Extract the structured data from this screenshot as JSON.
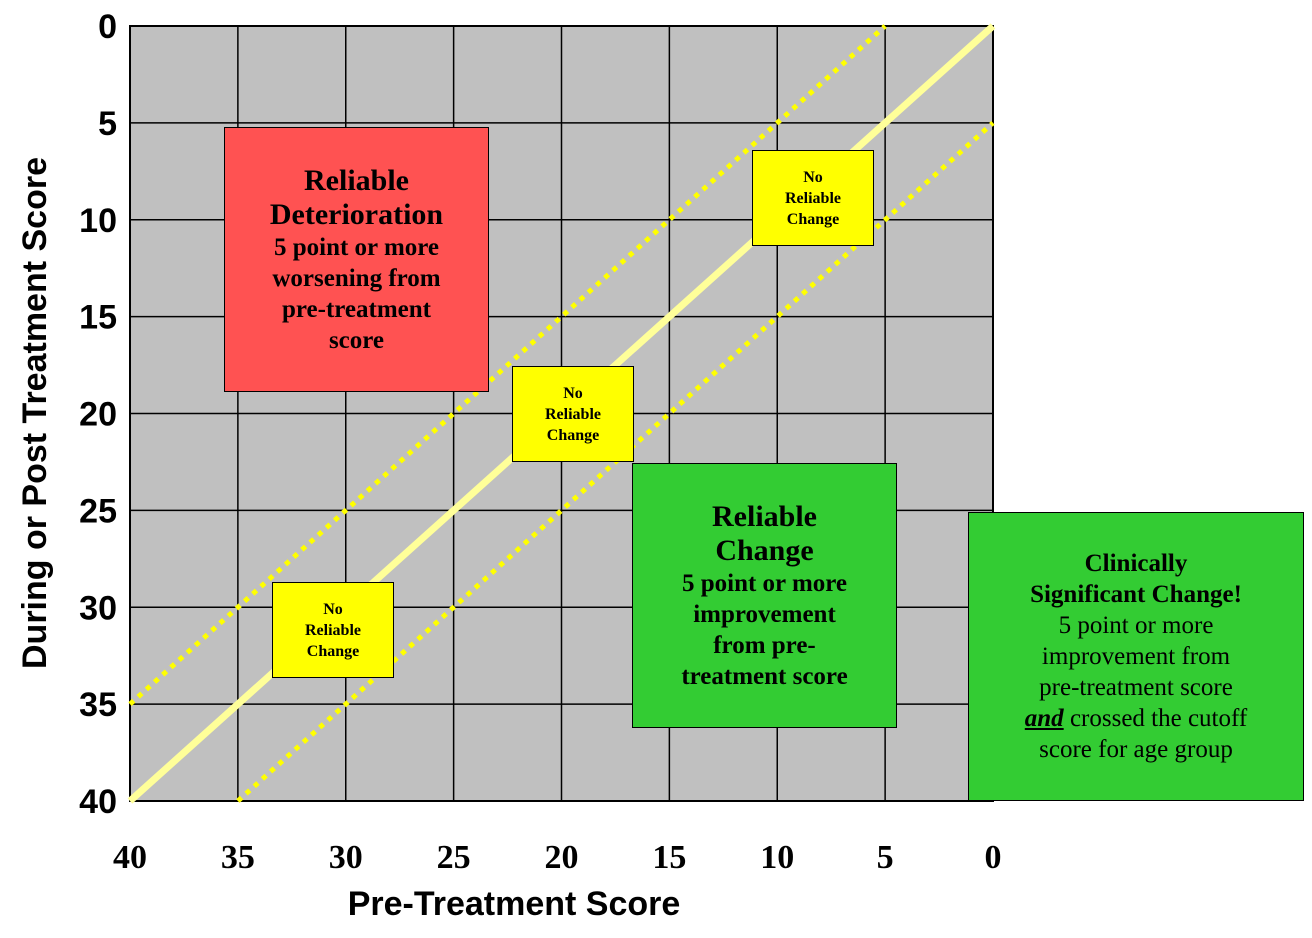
{
  "chart_data": {
    "type": "line",
    "xlabel": "Pre-Treatment Score",
    "ylabel": "During or Post Treatment Score",
    "xlim": [
      40,
      0
    ],
    "ylim": [
      0,
      40
    ],
    "x_reversed": true,
    "y_inverted": true,
    "x_ticks": [
      "40",
      "35",
      "30",
      "25",
      "20",
      "15",
      "10",
      "5",
      "0"
    ],
    "y_ticks": [
      "0",
      "5",
      "10",
      "15",
      "20",
      "25",
      "30",
      "35",
      "40"
    ],
    "grid": true,
    "series": [
      {
        "style": "solid",
        "color": "#ffff99",
        "x": [
          40,
          0
        ],
        "y": [
          40,
          0
        ]
      },
      {
        "style": "dotted",
        "color": "#ffff00",
        "x": [
          40,
          5
        ],
        "y": [
          35,
          0
        ]
      },
      {
        "style": "dotted",
        "color": "#ffff00",
        "x": [
          35,
          0
        ],
        "y": [
          40,
          5
        ]
      }
    ],
    "annotations": {
      "deterioration": {
        "title": [
          "Reliable",
          "Deterioration"
        ],
        "body": [
          "5 point or more",
          "worsening from",
          "pre-treatment",
          "score"
        ],
        "color": "#ff5252"
      },
      "reliable_change": {
        "title": [
          "Reliable",
          "Change"
        ],
        "body": [
          "5 point or more",
          "improvement",
          "from pre-",
          "treatment score"
        ],
        "color": "#33cc33"
      },
      "clinical": {
        "title": [
          "Clinically",
          "Significant Change!"
        ],
        "body": [
          "5 point or more",
          "improvement from",
          "pre-treatment score"
        ],
        "emph": "and",
        "tail": " crossed the cutoff",
        "last": "score for age group",
        "color": "#33cc33"
      },
      "no_change": [
        "No",
        "Reliable",
        "Change"
      ],
      "no_change_color": "#ffff00"
    },
    "plot_background": "#c0c0c0"
  }
}
